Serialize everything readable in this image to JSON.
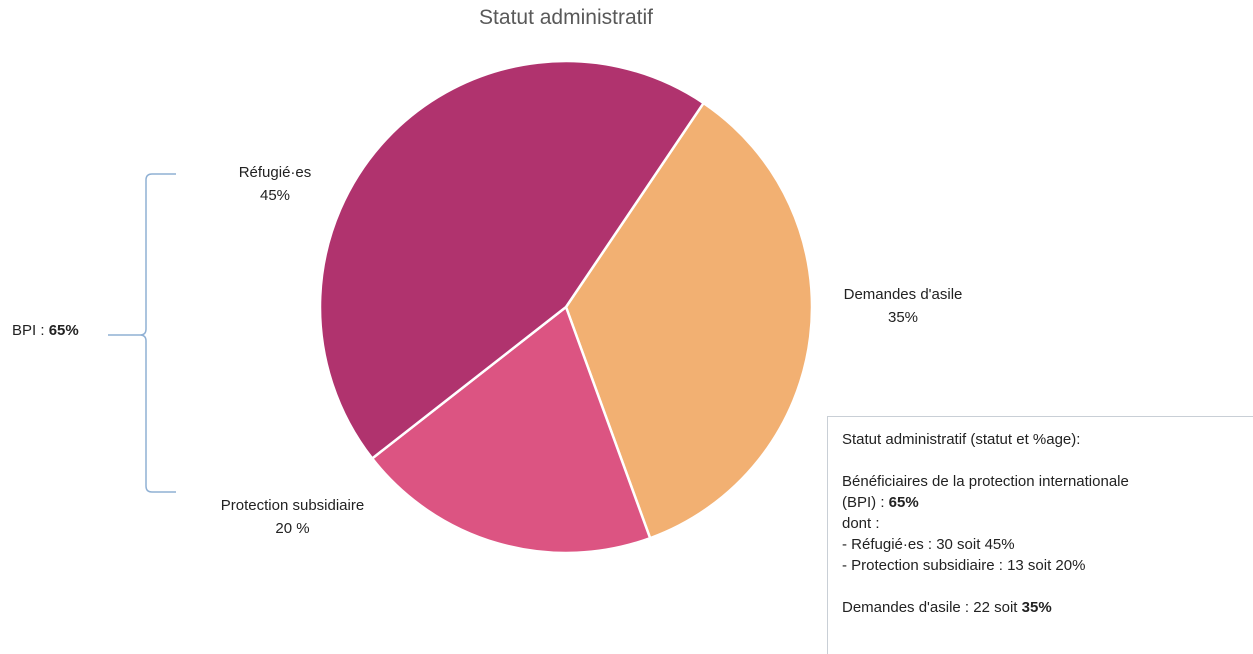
{
  "chart_data": {
    "type": "pie",
    "title": "Statut administratif",
    "slices": [
      {
        "name": "Réfugié·es",
        "label": "45%",
        "value": 45,
        "color": "#b0336e"
      },
      {
        "name": "Demandes d'asile",
        "label": "35%",
        "value": 35,
        "color": "#f2b072"
      },
      {
        "name": "Protection subsidiaire",
        "label": "20 %",
        "value": 20,
        "color": "#dc5482"
      }
    ],
    "legend": "none"
  },
  "bracket": {
    "label_prefix": "BPI : ",
    "label_value": "65%",
    "color": "#8fb0d4"
  },
  "info_box": {
    "heading": "Statut administratif (statut et %age):",
    "bpi_line1": "Bénéficiaires de la protection internationale",
    "bpi_line2_prefix": "(BPI) : ",
    "bpi_line2_value": "65%",
    "dont": "dont :",
    "refugies_line": "- Réfugié·es : 30 soit 45%",
    "subsidiaire_line": "- Protection subsidiaire : 13 soit 20%",
    "asile_prefix": "Demandes d'asile : 22 soit ",
    "asile_value": "35%"
  }
}
